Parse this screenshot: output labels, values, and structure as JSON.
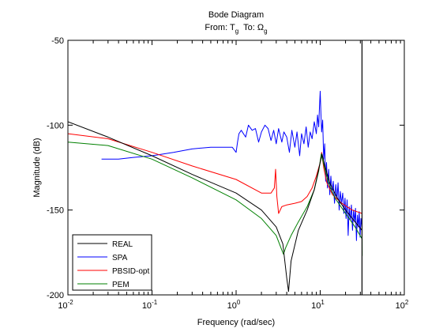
{
  "chart_data": {
    "type": "line",
    "title": "Bode Diagram",
    "subtitle": {
      "from_label": "From: T",
      "from_sub": "g",
      "to_label": "To: Ω",
      "to_sub": "g"
    },
    "xlabel": "Frequency  (rad/sec)",
    "ylabel": "Magnitude (dB)",
    "xscale": "log",
    "xlim": [
      0.01,
      100
    ],
    "ylim": [
      -200,
      -50
    ],
    "x_ticks": [
      {
        "value": 0.01,
        "base": "10",
        "exp": "-2"
      },
      {
        "value": 0.1,
        "base": "10",
        "exp": "-1"
      },
      {
        "value": 1,
        "base": "10",
        "exp": "0"
      },
      {
        "value": 10,
        "base": "10",
        "exp": "1"
      },
      {
        "value": 100,
        "base": "10",
        "exp": "2"
      }
    ],
    "y_ticks": [
      {
        "value": -50,
        "label": "-50"
      },
      {
        "value": -100,
        "label": "-100"
      },
      {
        "value": -150,
        "label": "-150"
      },
      {
        "value": -200,
        "label": "-200"
      }
    ],
    "grid": false,
    "legend_position": "bottom-left",
    "nyquist_frequency": 31.4,
    "series": [
      {
        "name": "REAL",
        "color": "#000000",
        "points": [
          [
            0.01,
            -98
          ],
          [
            0.03,
            -107
          ],
          [
            0.1,
            -118
          ],
          [
            0.3,
            -129
          ],
          [
            1,
            -140
          ],
          [
            2,
            -150
          ],
          [
            3,
            -160
          ],
          [
            3.6,
            -170
          ],
          [
            4,
            -190
          ],
          [
            4.2,
            -198
          ],
          [
            4.5,
            -180
          ],
          [
            5.5,
            -162
          ],
          [
            7,
            -150
          ],
          [
            8.5,
            -138
          ],
          [
            9.6,
            -126
          ],
          [
            10.5,
            -117
          ],
          [
            11.2,
            -123
          ],
          [
            13,
            -134
          ],
          [
            16,
            -143
          ],
          [
            20,
            -150
          ],
          [
            26,
            -157
          ],
          [
            31.5,
            -162
          ]
        ]
      },
      {
        "name": "SPA",
        "color": "#0000ff",
        "points": [
          [
            0.0251,
            -120
          ],
          [
            0.04,
            -120
          ],
          [
            0.06,
            -119
          ],
          [
            0.1,
            -118
          ],
          [
            0.18,
            -116
          ],
          [
            0.3,
            -114
          ],
          [
            0.5,
            -113
          ],
          [
            0.7,
            -113
          ],
          [
            0.9,
            -113
          ],
          [
            1.0,
            -116
          ],
          [
            1.04,
            -110
          ],
          [
            1.08,
            -105
          ],
          [
            1.15,
            -103
          ],
          [
            1.3,
            -107
          ],
          [
            1.4,
            -100
          ],
          [
            1.55,
            -103
          ],
          [
            1.7,
            -102
          ],
          [
            1.85,
            -110
          ],
          [
            2.0,
            -104
          ],
          [
            2.2,
            -100
          ],
          [
            2.4,
            -102
          ],
          [
            2.6,
            -109
          ],
          [
            2.8,
            -103
          ],
          [
            3.0,
            -111
          ],
          [
            3.2,
            -102
          ],
          [
            3.5,
            -110
          ],
          [
            3.7,
            -104
          ],
          [
            4.0,
            -107
          ],
          [
            4.3,
            -116
          ],
          [
            4.6,
            -103
          ],
          [
            5.0,
            -113
          ],
          [
            5.3,
            -104
          ],
          [
            5.7,
            -118
          ],
          [
            6.0,
            -105
          ],
          [
            6.4,
            -111
          ],
          [
            6.8,
            -101
          ],
          [
            7.2,
            -113
          ],
          [
            7.6,
            -104
          ],
          [
            8.0,
            -108
          ],
          [
            8.5,
            -98
          ],
          [
            9.0,
            -105
          ],
          [
            9.3,
            -94
          ],
          [
            9.6,
            -101
          ],
          [
            9.8,
            -89
          ],
          [
            10.0,
            -80
          ],
          [
            10.2,
            -93
          ],
          [
            10.4,
            -104
          ],
          [
            10.7,
            -97
          ],
          [
            11.0,
            -120
          ],
          [
            11.3,
            -111
          ],
          [
            11.6,
            -133
          ],
          [
            11.9,
            -122
          ],
          [
            12.2,
            -137
          ],
          [
            12.6,
            -126
          ],
          [
            13.0,
            -141
          ],
          [
            13.4,
            -130
          ],
          [
            13.8,
            -140
          ],
          [
            14.3,
            -133
          ],
          [
            14.8,
            -146
          ],
          [
            15.3,
            -135
          ],
          [
            15.8,
            -143
          ],
          [
            16.3,
            -134
          ],
          [
            16.8,
            -150
          ],
          [
            17.3,
            -139
          ],
          [
            17.9,
            -146
          ],
          [
            18.5,
            -140
          ],
          [
            19.1,
            -152
          ],
          [
            19.7,
            -143
          ],
          [
            20.3,
            -155
          ],
          [
            20.9,
            -144
          ],
          [
            21.5,
            -165
          ],
          [
            22.1,
            -148
          ],
          [
            22.8,
            -156
          ],
          [
            23.5,
            -147
          ],
          [
            24.2,
            -162
          ],
          [
            24.9,
            -150
          ],
          [
            25.6,
            -157
          ],
          [
            26.3,
            -149
          ],
          [
            27.0,
            -168
          ],
          [
            27.7,
            -153
          ],
          [
            28.4,
            -160
          ],
          [
            29.1,
            -151
          ],
          [
            29.8,
            -166
          ],
          [
            30.5,
            -155
          ],
          [
            31.4,
            -160
          ]
        ]
      },
      {
        "name": "PBSID-opt",
        "color": "#ff0000",
        "points": [
          [
            0.01,
            -105
          ],
          [
            0.03,
            -108
          ],
          [
            0.1,
            -116
          ],
          [
            0.3,
            -124
          ],
          [
            1,
            -132
          ],
          [
            2,
            -140
          ],
          [
            2.6,
            -140
          ],
          [
            2.85,
            -137
          ],
          [
            2.95,
            -126
          ],
          [
            3.05,
            -142
          ],
          [
            3.2,
            -152
          ],
          [
            3.5,
            -148
          ],
          [
            4,
            -147
          ],
          [
            5,
            -146
          ],
          [
            6,
            -145
          ],
          [
            7,
            -142
          ],
          [
            8,
            -137
          ],
          [
            9,
            -130
          ],
          [
            10,
            -122
          ],
          [
            10.4,
            -116
          ],
          [
            11,
            -125
          ],
          [
            12,
            -134
          ],
          [
            14,
            -141
          ],
          [
            18,
            -146
          ],
          [
            24,
            -150
          ],
          [
            31.5,
            -152
          ]
        ]
      },
      {
        "name": "PEM",
        "color": "#008000",
        "points": [
          [
            0.01,
            -110
          ],
          [
            0.03,
            -112
          ],
          [
            0.1,
            -120
          ],
          [
            0.3,
            -131
          ],
          [
            1,
            -144
          ],
          [
            2,
            -155
          ],
          [
            3,
            -165
          ],
          [
            3.4,
            -172
          ],
          [
            3.65,
            -176
          ],
          [
            3.9,
            -172
          ],
          [
            4.5,
            -165
          ],
          [
            5.5,
            -157
          ],
          [
            7,
            -148
          ],
          [
            8.5,
            -138
          ],
          [
            9.6,
            -127
          ],
          [
            10.3,
            -117
          ],
          [
            11,
            -123
          ],
          [
            12.5,
            -134
          ],
          [
            15,
            -143
          ],
          [
            20,
            -152
          ],
          [
            26,
            -160
          ],
          [
            31.5,
            -167
          ],
          [
            31.6,
            -177
          ]
        ]
      }
    ]
  }
}
